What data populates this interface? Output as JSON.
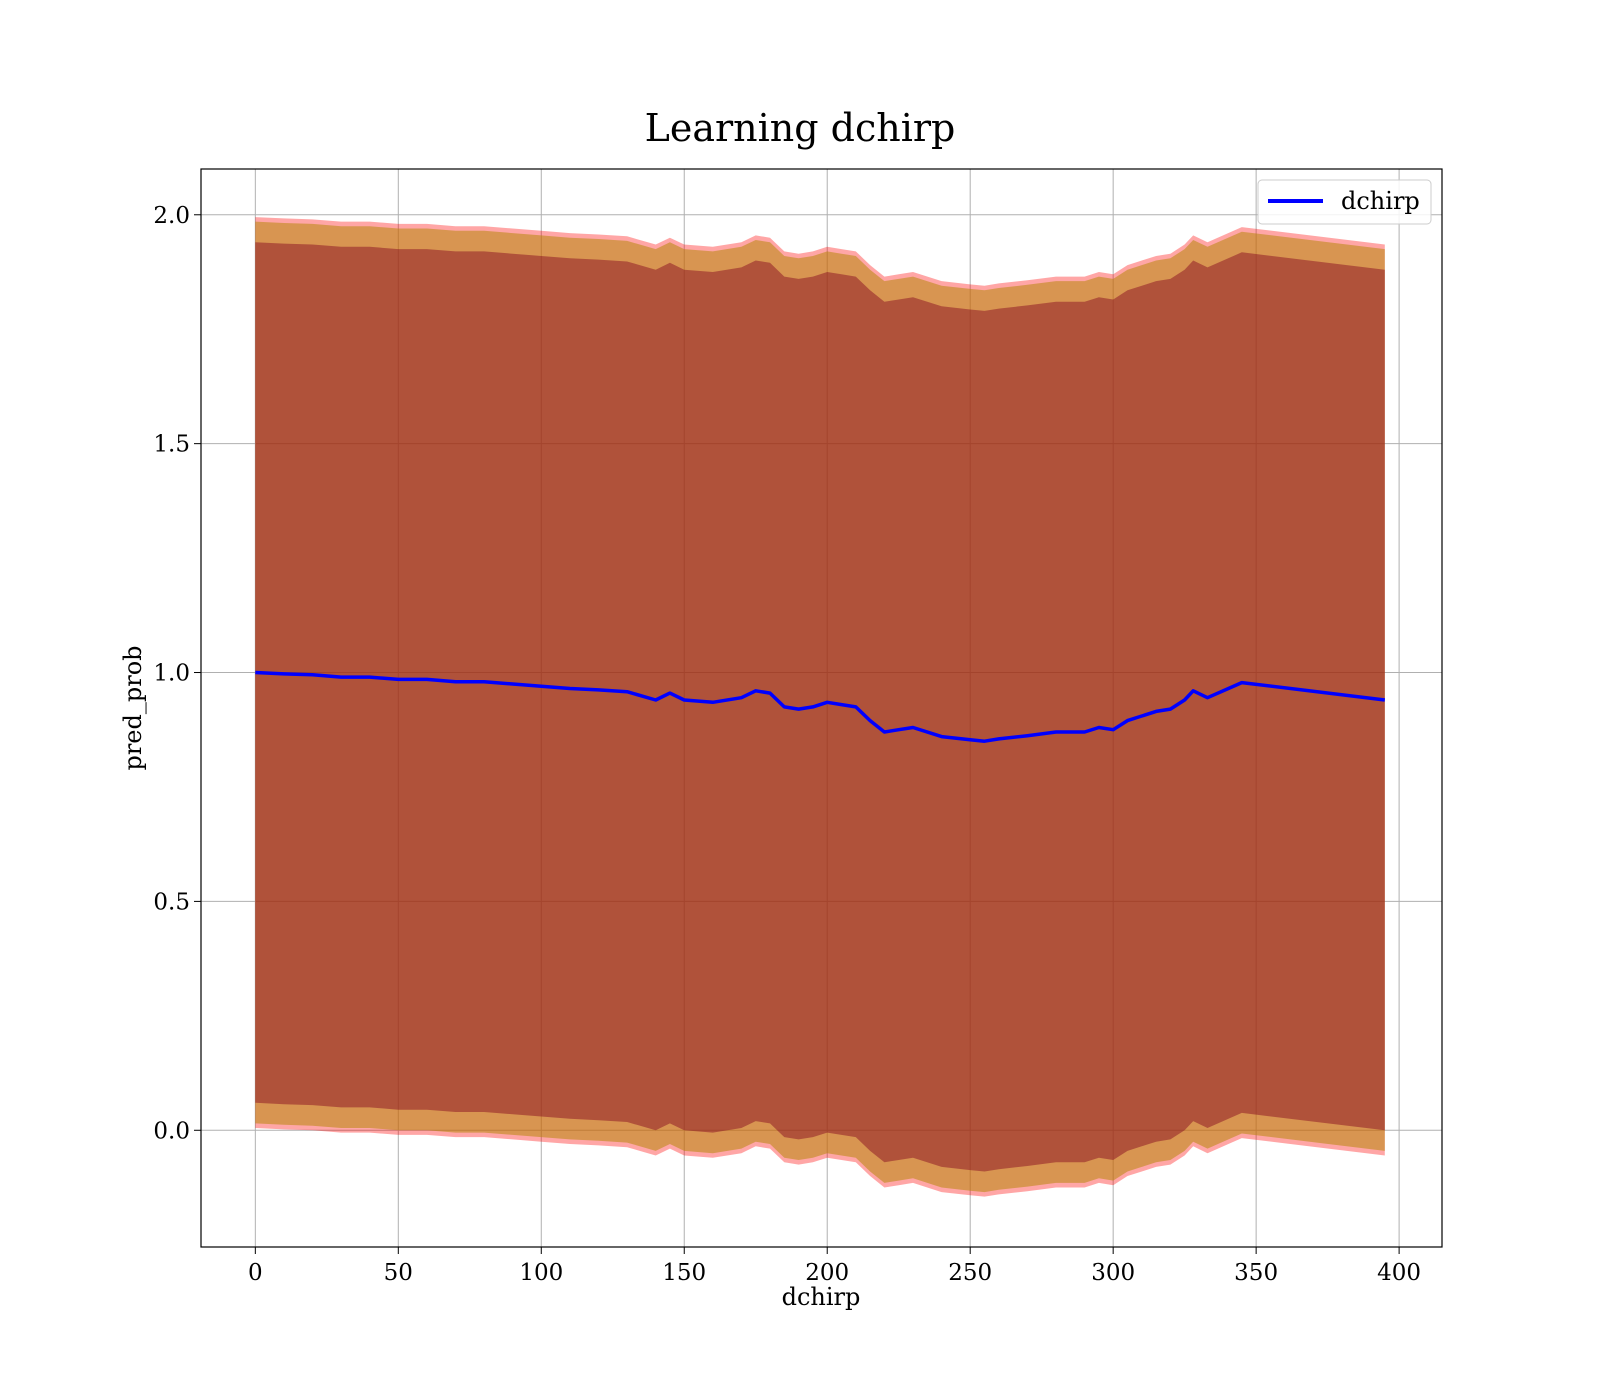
{
  "chart_data": {
    "type": "line",
    "title": "Learning dchirp",
    "xlabel": "dchirp",
    "ylabel": "pred_prob",
    "xlim": [
      -19,
      415
    ],
    "ylim": [
      -0.255,
      2.1
    ],
    "xticks": [
      0,
      50,
      100,
      150,
      200,
      250,
      300,
      350,
      400
    ],
    "yticks": [
      0.0,
      0.5,
      1.0,
      1.5,
      2.0
    ],
    "xtick_labels": [
      "0",
      "50",
      "100",
      "150",
      "200",
      "250",
      "300",
      "350",
      "400"
    ],
    "ytick_labels": [
      "0.0",
      "0.5",
      "1.0",
      "1.5",
      "2.0"
    ],
    "grid": true,
    "legend_position": "top-right",
    "colors": {
      "line": "#0000ff",
      "band_outer": "#ff0000",
      "band_mid": "#b8860b",
      "band_inner": "#800020"
    },
    "series": [
      {
        "name": "dchirp",
        "x": [
          0,
          10,
          20,
          30,
          40,
          50,
          60,
          70,
          80,
          90,
          100,
          110,
          120,
          130,
          140,
          145,
          150,
          160,
          170,
          175,
          180,
          185,
          190,
          195,
          200,
          205,
          210,
          215,
          220,
          225,
          230,
          240,
          250,
          255,
          260,
          270,
          280,
          290,
          295,
          300,
          305,
          310,
          315,
          320,
          325,
          328,
          333,
          345,
          395
        ],
        "y": [
          1.0,
          0.997,
          0.995,
          0.99,
          0.99,
          0.985,
          0.985,
          0.98,
          0.98,
          0.975,
          0.97,
          0.965,
          0.962,
          0.958,
          0.94,
          0.955,
          0.94,
          0.935,
          0.945,
          0.96,
          0.955,
          0.925,
          0.92,
          0.925,
          0.935,
          0.93,
          0.925,
          0.895,
          0.87,
          0.875,
          0.88,
          0.86,
          0.853,
          0.85,
          0.855,
          0.862,
          0.87,
          0.87,
          0.88,
          0.875,
          0.895,
          0.905,
          0.915,
          0.92,
          0.94,
          0.96,
          0.945,
          0.978,
          0.94
        ],
        "band_outer_halfwidth": 0.995,
        "band_mid_halfwidth": 0.985,
        "band_inner_halfwidth": 0.94
      }
    ]
  }
}
